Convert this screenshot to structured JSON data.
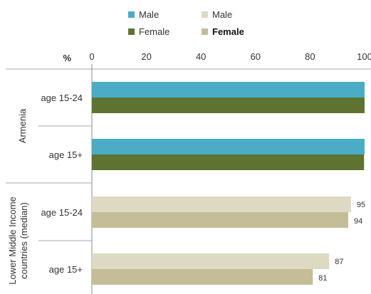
{
  "chart_data": {
    "type": "bar",
    "orientation": "horizontal",
    "unit_label": "%",
    "xlim": [
      0,
      100
    ],
    "x_ticks": [
      "0",
      "20",
      "40",
      "60",
      "80",
      "100"
    ],
    "legend": [
      {
        "label": "Male",
        "color": "#4BACC6"
      },
      {
        "label": "Female",
        "color": "#5E7331"
      },
      {
        "label": "Male",
        "color": "#DDD9C3"
      },
      {
        "label": "Female",
        "color": "#C4BD97"
      }
    ],
    "groups": [
      {
        "name": "Armenia",
        "rows": [
          {
            "label": "age 15-24",
            "male": 100,
            "female": 100,
            "male_label": "",
            "female_label": ""
          },
          {
            "label": "age 15+",
            "male": 100,
            "female": 99.8,
            "male_label": "",
            "female_label": ""
          }
        ],
        "colors": {
          "male": "#4BACC6",
          "female": "#5E7331"
        }
      },
      {
        "name": "Lower Middle Income countries (median)",
        "name_lines": [
          "Lower Middle Income",
          "countries (median)"
        ],
        "rows": [
          {
            "label": "age 15-24",
            "male": 95,
            "female": 94,
            "male_label": "95",
            "female_label": "94"
          },
          {
            "label": "age 15+",
            "male": 87,
            "female": 81,
            "male_label": "87",
            "female_label": "81"
          }
        ],
        "colors": {
          "male": "#DDD9C3",
          "female": "#C4BD97"
        }
      }
    ]
  }
}
